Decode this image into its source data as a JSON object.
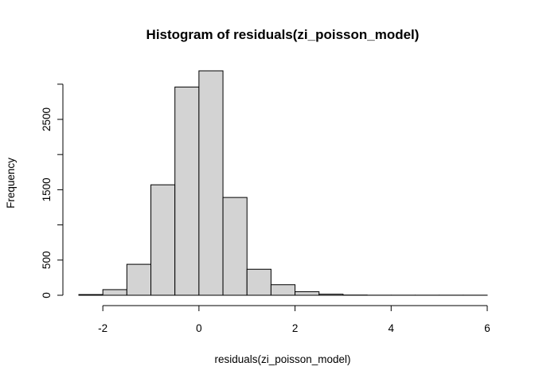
{
  "chart_data": {
    "type": "bar",
    "title": "Histogram of residuals(zi_poisson_model)",
    "xlabel": "residuals(zi_poisson_model)",
    "ylabel": "Frequency",
    "bin_edges": [
      -2.5,
      -2.0,
      -1.5,
      -1.0,
      -0.5,
      0.0,
      0.5,
      1.0,
      1.5,
      2.0,
      2.5,
      3.0,
      3.5,
      4.0,
      4.5,
      5.0,
      5.5,
      6.0
    ],
    "values": [
      10,
      80,
      440,
      1570,
      2960,
      3190,
      1390,
      370,
      150,
      50,
      15,
      3,
      1,
      1,
      1,
      1,
      1
    ],
    "xlim": [
      -2.5,
      6.0
    ],
    "ylim": [
      0,
      3190
    ],
    "x_ticks": [
      -2,
      0,
      2,
      4,
      6
    ],
    "x_tick_labels": [
      "-2",
      "0",
      "2",
      "4",
      "6"
    ],
    "y_ticks": [
      0,
      500,
      1000,
      1500,
      2000,
      2500,
      3000
    ],
    "y_tick_labels": [
      "0",
      "500",
      "",
      "1500",
      "",
      "2500",
      ""
    ],
    "bar_color": "#d3d3d3",
    "grid": false
  }
}
